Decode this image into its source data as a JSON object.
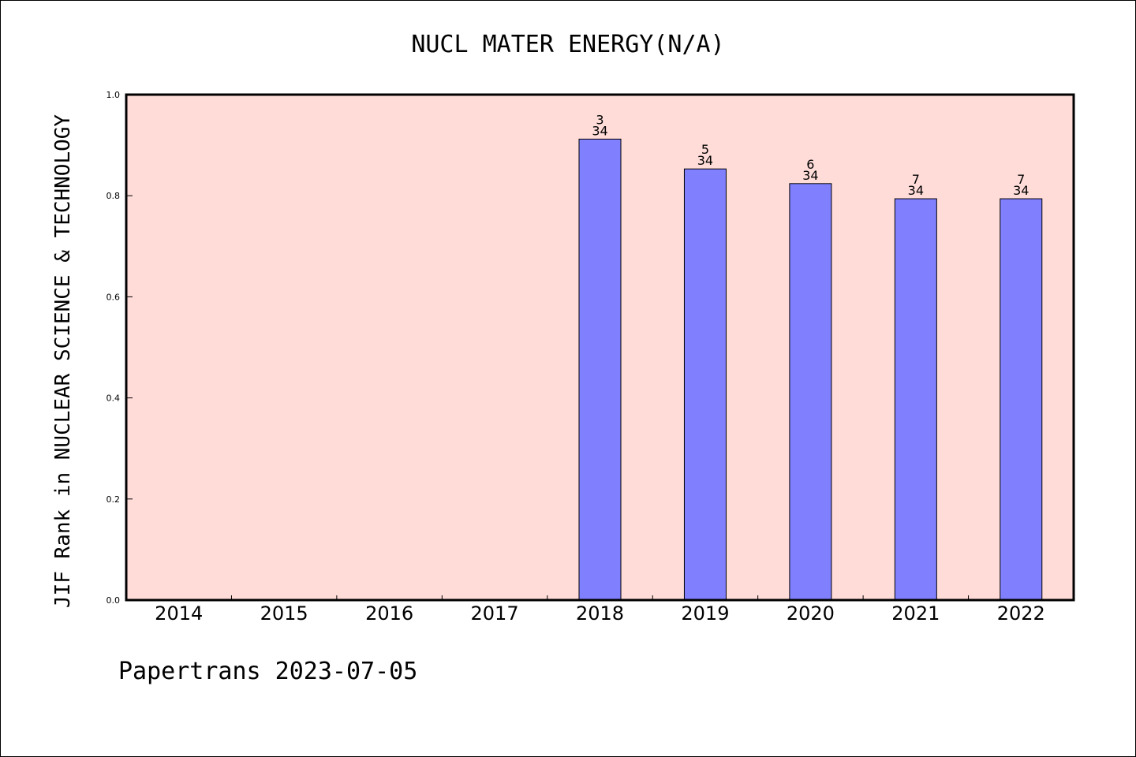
{
  "chart_data": {
    "type": "bar",
    "title": "NUCL MATER ENERGY(N/A)",
    "xlabel": "",
    "ylabel": "JIF Rank in NUCLEAR SCIENCE & TECHNOLOGY",
    "categories": [
      "2014",
      "2015",
      "2016",
      "2017",
      "2018",
      "2019",
      "2020",
      "2021",
      "2022"
    ],
    "values": [
      null,
      null,
      null,
      null,
      0.912,
      0.853,
      0.824,
      0.794,
      0.794
    ],
    "rank_labels": [
      "",
      "",
      "",
      "",
      "3",
      "5",
      "6",
      "7",
      "7"
    ],
    "total_labels": [
      "",
      "",
      "",
      "",
      "34",
      "34",
      "34",
      "34",
      "34"
    ],
    "ylim": [
      0,
      1.0
    ],
    "yticks": [
      "0.0",
      "0.2",
      "0.4",
      "0.6",
      "0.8",
      "1.0"
    ],
    "grid": false,
    "colors": {
      "plot_background": "#ffdcd8",
      "bar": "#8080ff",
      "axis": "#000000"
    }
  },
  "footer": {
    "text": "Papertrans 2023-07-05"
  }
}
